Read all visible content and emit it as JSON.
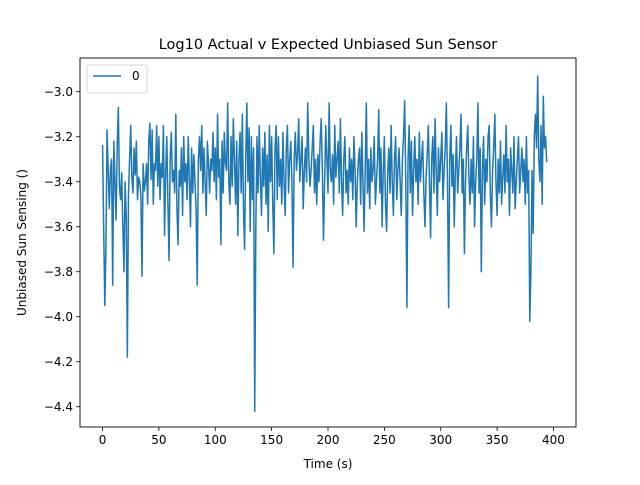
{
  "chart_data": {
    "type": "line",
    "title": "Log10 Actual v Expected Unbiased Sun Sensor",
    "xlabel": "Time (s)",
    "ylabel": "Unbiased Sun Sensing ()",
    "xlim": [
      -20,
      420
    ],
    "ylim": [
      -4.49,
      -2.85
    ],
    "xticks": [
      0,
      50,
      100,
      150,
      200,
      250,
      300,
      350,
      400
    ],
    "xtick_labels": [
      "0",
      "50",
      "100",
      "150",
      "200",
      "250",
      "300",
      "350",
      "400"
    ],
    "yticks": [
      -3.0,
      -3.2,
      -3.4,
      -3.6,
      -3.8,
      -4.0,
      -4.2,
      -4.4
    ],
    "ytick_labels": [
      "−3.0",
      "−3.2",
      "−3.4",
      "−3.6",
      "−3.8",
      "−4.0",
      "−4.2",
      "−4.4"
    ],
    "grid": false,
    "legend": {
      "position": "top-left",
      "entries": [
        "0"
      ]
    },
    "series": [
      {
        "name": "0",
        "color": "#1f77b4",
        "x_start": 0,
        "x_step": 1,
        "values": [
          -3.24,
          -3.6,
          -3.95,
          -3.7,
          -3.17,
          -3.35,
          -3.52,
          -3.34,
          -3.3,
          -3.86,
          -3.22,
          -3.4,
          -3.57,
          -3.24,
          -3.07,
          -3.42,
          -3.48,
          -3.36,
          -3.6,
          -3.8,
          -3.4,
          -3.55,
          -4.18,
          -3.46,
          -3.3,
          -3.15,
          -3.38,
          -3.45,
          -3.25,
          -3.37,
          -3.22,
          -3.48,
          -3.38,
          -3.4,
          -3.46,
          -3.82,
          -3.32,
          -3.44,
          -3.4,
          -3.32,
          -3.5,
          -3.22,
          -3.14,
          -3.39,
          -3.17,
          -3.5,
          -3.32,
          -3.35,
          -3.15,
          -3.42,
          -3.2,
          -3.48,
          -3.32,
          -3.38,
          -3.15,
          -3.64,
          -3.36,
          -3.2,
          -3.5,
          -3.75,
          -3.3,
          -3.18,
          -3.4,
          -3.35,
          -3.45,
          -3.1,
          -3.52,
          -3.68,
          -3.35,
          -3.42,
          -3.25,
          -3.55,
          -3.2,
          -3.4,
          -3.32,
          -3.48,
          -3.2,
          -3.38,
          -3.6,
          -3.25,
          -3.45,
          -3.28,
          -3.4,
          -3.52,
          -3.86,
          -3.3,
          -3.2,
          -3.35,
          -3.15,
          -3.45,
          -3.25,
          -3.4,
          -3.55,
          -3.22,
          -3.32,
          -3.45,
          -3.3,
          -3.35,
          -3.18,
          -3.4,
          -3.25,
          -3.48,
          -3.1,
          -3.38,
          -3.3,
          -3.68,
          -3.22,
          -3.45,
          -3.18,
          -3.32,
          -3.35,
          -3.05,
          -3.4,
          -3.5,
          -3.2,
          -3.42,
          -3.12,
          -3.3,
          -3.5,
          -3.22,
          -3.64,
          -3.3,
          -3.18,
          -3.45,
          -3.1,
          -3.52,
          -3.7,
          -3.3,
          -3.05,
          -3.4,
          -3.16,
          -3.62,
          -3.2,
          -3.48,
          -3.25,
          -4.42,
          -3.6,
          -3.2,
          -3.45,
          -3.15,
          -3.38,
          -3.55,
          -3.25,
          -3.42,
          -3.18,
          -3.5,
          -3.28,
          -3.62,
          -3.15,
          -3.4,
          -3.2,
          -3.5,
          -3.72,
          -3.25,
          -3.15,
          -3.48,
          -3.2,
          -3.42,
          -3.3,
          -3.5,
          -3.18,
          -3.4,
          -3.55,
          -3.25,
          -3.15,
          -3.45,
          -3.3,
          -3.22,
          -3.4,
          -3.78,
          -3.3,
          -3.18,
          -3.35,
          -3.28,
          -3.12,
          -3.4,
          -3.3,
          -3.2,
          -3.52,
          -3.35,
          -3.25,
          -3.4,
          -3.05,
          -3.3,
          -3.42,
          -3.35,
          -3.25,
          -3.15,
          -3.45,
          -3.3,
          -3.5,
          -3.28,
          -3.4,
          -3.22,
          -3.12,
          -3.35,
          -3.66,
          -3.4,
          -3.15,
          -3.3,
          -3.45,
          -3.05,
          -3.35,
          -3.4,
          -3.28,
          -3.5,
          -3.15,
          -3.38,
          -3.3,
          -3.22,
          -3.45,
          -3.12,
          -3.4,
          -3.55,
          -3.3,
          -3.2,
          -3.45,
          -3.35,
          -3.5,
          -3.25,
          -3.4,
          -3.3,
          -3.48,
          -3.2,
          -3.35,
          -3.6,
          -3.4,
          -3.3,
          -3.25,
          -3.5,
          -3.18,
          -3.4,
          -3.62,
          -3.35,
          -3.05,
          -3.45,
          -3.3,
          -3.52,
          -3.25,
          -3.4,
          -3.35,
          -3.2,
          -3.5,
          -3.4,
          -3.3,
          -3.08,
          -3.45,
          -3.25,
          -3.6,
          -3.35,
          -3.2,
          -3.5,
          -3.62,
          -3.35,
          -3.25,
          -3.45,
          -3.15,
          -3.4,
          -3.55,
          -3.3,
          -3.2,
          -3.48,
          -3.35,
          -3.25,
          -3.4,
          -3.55,
          -3.3,
          -3.2,
          -3.04,
          -3.4,
          -3.96,
          -3.3,
          -3.15,
          -3.45,
          -3.22,
          -3.55,
          -3.35,
          -3.2,
          -3.4,
          -3.3,
          -3.5,
          -3.18,
          -3.4,
          -3.3,
          -3.22,
          -3.45,
          -3.6,
          -3.38,
          -3.28,
          -3.15,
          -3.4,
          -3.65,
          -3.3,
          -3.2,
          -3.45,
          -3.12,
          -3.35,
          -3.55,
          -3.25,
          -3.4,
          -3.3,
          -3.18,
          -3.48,
          -3.35,
          -3.25,
          -3.05,
          -3.4,
          -3.96,
          -3.3,
          -3.15,
          -3.42,
          -3.28,
          -3.6,
          -3.35,
          -3.2,
          -3.45,
          -3.35,
          -3.25,
          -3.1,
          -3.45,
          -3.3,
          -3.72,
          -3.4,
          -3.25,
          -3.15,
          -3.38,
          -3.5,
          -3.3,
          -3.45,
          -3.2,
          -3.6,
          -3.4,
          -3.3,
          -3.05,
          -3.45,
          -3.25,
          -3.8,
          -3.35,
          -3.2,
          -3.5,
          -3.3,
          -3.4,
          -3.2,
          -3.15,
          -3.45,
          -3.6,
          -3.35,
          -3.25,
          -3.1,
          -3.4,
          -3.55,
          -3.3,
          -3.45,
          -3.22,
          -3.5,
          -3.38,
          -3.28,
          -3.45,
          -3.15,
          -3.4,
          -3.3,
          -3.55,
          -3.25,
          -3.35,
          -3.45,
          -3.2,
          -3.52,
          -3.4,
          -3.3,
          -3.2,
          -3.45,
          -3.35,
          -3.25,
          -3.4,
          -3.3,
          -3.5,
          -3.2,
          -3.45,
          -3.35,
          -4.02,
          -3.8,
          -3.35,
          -3.63,
          -3.2,
          -3.1,
          -3.25,
          -2.93,
          -3.3,
          -3.4,
          -3.15,
          -3.5,
          -3.02,
          -3.25,
          -3.2,
          -3.31
        ]
      }
    ]
  }
}
